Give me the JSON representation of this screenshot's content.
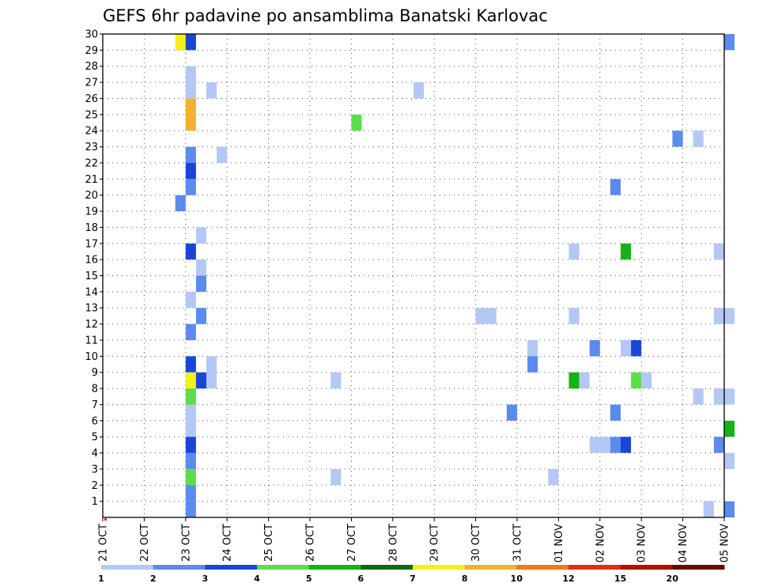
{
  "chart_data": {
    "type": "heatmap",
    "title": "GEFS 6hr padavine po ansamblima Banatski Karlovac",
    "y_ticks": [
      "1",
      "2",
      "3",
      "4",
      "5",
      "6",
      "7",
      "8",
      "9",
      "10",
      "11",
      "12",
      "13",
      "14",
      "15",
      "16",
      "17",
      "18",
      "19",
      "20",
      "21",
      "22",
      "23",
      "24",
      "25",
      "26",
      "27",
      "28",
      "29",
      "30"
    ],
    "x_ticks": [
      "21 OCT",
      "22 OCT",
      "23 OCT",
      "24 OCT",
      "25 OCT",
      "26 OCT",
      "27 OCT",
      "28 OCT",
      "29 OCT",
      "30 OCT",
      "31 OCT",
      "01 NOV",
      "02 NOV",
      "03 NOV",
      "04 NOV",
      "05 NOV"
    ],
    "x_range_days": [
      0,
      15
    ],
    "y_range_members": [
      0,
      30
    ],
    "grid": true,
    "legend_position": "bottom",
    "legend": {
      "labels": [
        "1",
        "2",
        "3",
        "4",
        "5",
        "6",
        "7",
        "8",
        "10",
        "12",
        "15",
        "20"
      ],
      "colors": [
        "#b3c8f5",
        "#5b8bec",
        "#1a46d8",
        "#5cdd4a",
        "#14b414",
        "#0a6e0a",
        "#f5f018",
        "#f5b030",
        "#ef7a18",
        "#d8320e",
        "#b01208",
        "#6a0808"
      ]
    },
    "cells": [
      {
        "member": 30,
        "day": 1.75,
        "class": 7
      },
      {
        "member": 30,
        "day": 2.0,
        "class": 3
      },
      {
        "member": 30,
        "day": 15.0,
        "class": 2
      },
      {
        "member": 28,
        "day": 2.0,
        "class": 1
      },
      {
        "member": 27,
        "day": 2.0,
        "class": 1
      },
      {
        "member": 27,
        "day": 2.5,
        "class": 1
      },
      {
        "member": 27,
        "day": 7.5,
        "class": 1
      },
      {
        "member": 26,
        "day": 2.0,
        "class": 8
      },
      {
        "member": 25,
        "day": 2.0,
        "class": 8
      },
      {
        "member": 25,
        "day": 6.0,
        "class": 4
      },
      {
        "member": 24,
        "day": 13.75,
        "class": 2
      },
      {
        "member": 24,
        "day": 14.25,
        "class": 1
      },
      {
        "member": 23,
        "day": 2.0,
        "class": 2
      },
      {
        "member": 23,
        "day": 2.75,
        "class": 1
      },
      {
        "member": 22,
        "day": 2.0,
        "class": 3
      },
      {
        "member": 21,
        "day": 2.0,
        "class": 2
      },
      {
        "member": 21,
        "day": 12.25,
        "class": 2
      },
      {
        "member": 20,
        "day": 1.75,
        "class": 2
      },
      {
        "member": 18,
        "day": 2.25,
        "class": 1
      },
      {
        "member": 17,
        "day": 2.0,
        "class": 3
      },
      {
        "member": 17,
        "day": 11.25,
        "class": 1
      },
      {
        "member": 17,
        "day": 12.5,
        "class": 5
      },
      {
        "member": 17,
        "day": 14.75,
        "class": 1
      },
      {
        "member": 16,
        "day": 2.25,
        "class": 1
      },
      {
        "member": 15,
        "day": 2.25,
        "class": 2
      },
      {
        "member": 14,
        "day": 2.0,
        "class": 1
      },
      {
        "member": 13,
        "day": 2.25,
        "class": 2
      },
      {
        "member": 13,
        "day": 9.0,
        "class": 1
      },
      {
        "member": 13,
        "day": 9.25,
        "class": 1
      },
      {
        "member": 13,
        "day": 11.25,
        "class": 1
      },
      {
        "member": 13,
        "day": 14.75,
        "class": 1
      },
      {
        "member": 13,
        "day": 15.0,
        "class": 1
      },
      {
        "member": 12,
        "day": 2.0,
        "class": 2
      },
      {
        "member": 11,
        "day": 10.25,
        "class": 1
      },
      {
        "member": 11,
        "day": 11.75,
        "class": 2
      },
      {
        "member": 11,
        "day": 12.5,
        "class": 1
      },
      {
        "member": 11,
        "day": 12.75,
        "class": 3
      },
      {
        "member": 10,
        "day": 2.0,
        "class": 3
      },
      {
        "member": 10,
        "day": 2.5,
        "class": 1
      },
      {
        "member": 10,
        "day": 10.25,
        "class": 2
      },
      {
        "member": 9,
        "day": 2.0,
        "class": 7
      },
      {
        "member": 9,
        "day": 2.25,
        "class": 3
      },
      {
        "member": 9,
        "day": 2.5,
        "class": 1
      },
      {
        "member": 9,
        "day": 5.5,
        "class": 1
      },
      {
        "member": 9,
        "day": 11.25,
        "class": 5
      },
      {
        "member": 9,
        "day": 11.5,
        "class": 1
      },
      {
        "member": 9,
        "day": 12.75,
        "class": 4
      },
      {
        "member": 9,
        "day": 13.0,
        "class": 1
      },
      {
        "member": 8,
        "day": 2.0,
        "class": 4
      },
      {
        "member": 8,
        "day": 14.25,
        "class": 1
      },
      {
        "member": 8,
        "day": 14.75,
        "class": 1
      },
      {
        "member": 8,
        "day": 15.0,
        "class": 1
      },
      {
        "member": 7,
        "day": 2.0,
        "class": 1
      },
      {
        "member": 7,
        "day": 9.75,
        "class": 2
      },
      {
        "member": 7,
        "day": 12.25,
        "class": 2
      },
      {
        "member": 6,
        "day": 2.0,
        "class": 1
      },
      {
        "member": 6,
        "day": 15.0,
        "class": 5
      },
      {
        "member": 5,
        "day": 2.0,
        "class": 3
      },
      {
        "member": 5,
        "day": 11.75,
        "class": 1
      },
      {
        "member": 5,
        "day": 12.0,
        "class": 1
      },
      {
        "member": 5,
        "day": 12.25,
        "class": 2
      },
      {
        "member": 5,
        "day": 12.5,
        "class": 3
      },
      {
        "member": 5,
        "day": 14.75,
        "class": 2
      },
      {
        "member": 4,
        "day": 2.0,
        "class": 2
      },
      {
        "member": 4,
        "day": 15.0,
        "class": 1
      },
      {
        "member": 3,
        "day": 2.0,
        "class": 4
      },
      {
        "member": 3,
        "day": 5.5,
        "class": 1
      },
      {
        "member": 3,
        "day": 10.75,
        "class": 1
      },
      {
        "member": 2,
        "day": 2.0,
        "class": 2
      },
      {
        "member": 1,
        "day": 2.0,
        "class": 2
      },
      {
        "member": 1,
        "day": 14.5,
        "class": 1
      },
      {
        "member": 1,
        "day": 15.0,
        "class": 2
      }
    ]
  }
}
